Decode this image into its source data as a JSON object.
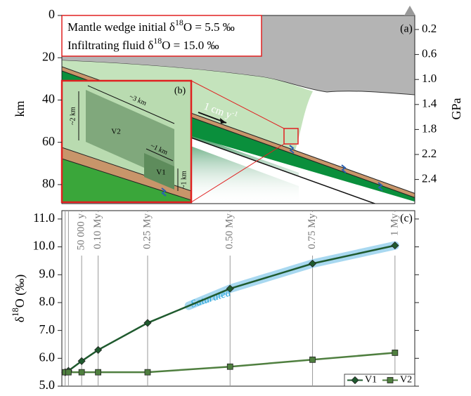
{
  "panel_a": {
    "label": "(a)",
    "left_axis_title": "km",
    "right_axis_title": "GPa",
    "km_lim": [
      0,
      89
    ],
    "km_ticks": [
      0,
      20,
      40,
      60,
      80
    ],
    "gpa_labels": [
      "0.2",
      "0.6",
      "1.0",
      "1.4",
      "1.8",
      "2.2",
      "2.4"
    ],
    "info_box": [
      [
        "Mantle wedge initial δ",
        "18",
        "O = 5.5 ‰"
      ],
      [
        "Infiltrating fluid δ",
        "18",
        "O = 15.0 ‰"
      ]
    ],
    "velocity": [
      "1 cm y",
      "-1"
    ],
    "inset": {
      "label": "(b)",
      "width": "~3 km",
      "height": "~2 km",
      "v2": "V2",
      "v1_width": "~1 km",
      "v1_height": "~1 km",
      "v1": "V1"
    }
  },
  "chart_data": {
    "type": "line",
    "label": "(c)",
    "y_label": [
      "δ",
      "18",
      "O (‰)"
    ],
    "x": [
      0,
      0.01,
      0.05,
      0.1,
      0.25,
      0.5,
      0.75,
      1
    ],
    "x_labels": [
      null,
      null,
      "50 000 y",
      "0.10 My",
      "0.25 My",
      "0.50 My",
      "0.75 My",
      "1 My"
    ],
    "xlim": [
      -0.01,
      1.06
    ],
    "ylim": [
      5.0,
      11.3
    ],
    "yticks": [
      {
        "value": 5,
        "label": "5.0"
      },
      {
        "value": 6,
        "label": "6.0"
      },
      {
        "value": 7,
        "label": "7.0"
      },
      {
        "value": 8,
        "label": "8.0"
      },
      {
        "value": 9,
        "label": "9.0"
      },
      {
        "value": 10,
        "label": "10.0"
      },
      {
        "value": 11,
        "label": "11.0"
      }
    ],
    "series": [
      {
        "name": "V1",
        "color": "#1f5a2e",
        "marker": "diamond",
        "values": [
          5.5,
          5.55,
          5.9,
          6.3,
          7.27,
          8.5,
          9.4,
          10.05
        ]
      },
      {
        "name": "V2",
        "color": "#4f7f3f",
        "marker": "square",
        "values": [
          5.5,
          5.5,
          5.5,
          5.5,
          5.5,
          5.7,
          5.95,
          6.2
        ]
      }
    ],
    "annotation": "Saturated",
    "annotation_color": "#2aa7dc",
    "legend": "lower right"
  }
}
